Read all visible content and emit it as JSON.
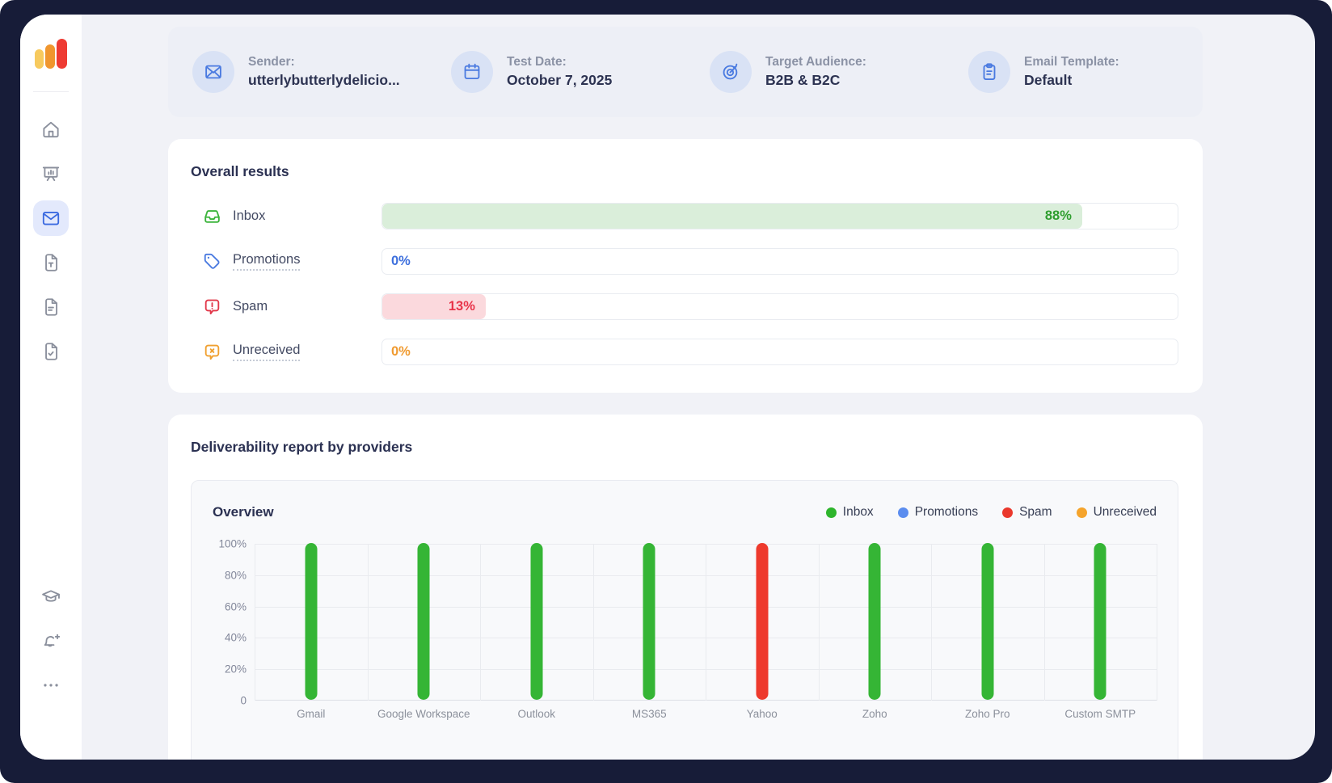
{
  "window": {
    "frame_color": "#171c38",
    "app_bg": "#f1f2f7"
  },
  "sidebar": {
    "logo_colors": [
      "#f7ca5e",
      "#f0962e",
      "#ee3b33"
    ],
    "items": [
      {
        "icon": "home",
        "name": "home",
        "active": false
      },
      {
        "icon": "presentation",
        "name": "reports",
        "active": false
      },
      {
        "icon": "mail",
        "name": "email-tests",
        "active": true
      },
      {
        "icon": "file-t",
        "name": "templates",
        "active": false
      },
      {
        "icon": "doc-lines",
        "name": "documents",
        "active": false
      },
      {
        "icon": "doc-check",
        "name": "checklists",
        "active": false
      }
    ],
    "bottom_items": [
      {
        "icon": "grad-cap",
        "name": "education"
      },
      {
        "icon": "bell-plus",
        "name": "notifications"
      },
      {
        "icon": "dots",
        "name": "more-options"
      }
    ]
  },
  "header": {
    "items": [
      {
        "icon": "envelope",
        "label": "Sender:",
        "value": "utterlybutterlydelicio..."
      },
      {
        "icon": "calendar",
        "label": "Test Date:",
        "value": "October 7, 2025"
      },
      {
        "icon": "target",
        "label": "Target Audience:",
        "value": "B2B & B2C"
      },
      {
        "icon": "clipboard",
        "label": "Email Template:",
        "value": "Default"
      }
    ]
  },
  "overall": {
    "title": "Overall results",
    "rows": [
      {
        "icon": "inbox",
        "label": "Inbox",
        "value": 88,
        "display": "88%",
        "icon_color": "#3cb43c",
        "fill_bg": "#daeeda",
        "text_color": "#2f9e2f",
        "underline": false
      },
      {
        "icon": "tag",
        "label": "Promotions",
        "value": 0,
        "display": "0%",
        "icon_color": "#4a7ae0",
        "fill_bg": "",
        "text_color": "#3d6fdd",
        "underline": true
      },
      {
        "icon": "bubble-exclaim",
        "label": "Spam",
        "value": 13,
        "display": "13%",
        "icon_color": "#e2384a",
        "fill_bg": "#fbd9dd",
        "text_color": "#e8344a",
        "underline": false
      },
      {
        "icon": "bubble-x",
        "label": "Unreceived",
        "value": 0,
        "display": "0%",
        "icon_color": "#f0a030",
        "fill_bg": "",
        "text_color": "#f09a2f",
        "underline": true
      }
    ]
  },
  "providers": {
    "title": "Deliverability report by providers",
    "chart_title": "Overview",
    "legend": [
      {
        "label": "Inbox",
        "color": "#2eb52c"
      },
      {
        "label": "Promotions",
        "color": "#5b8def"
      },
      {
        "label": "Spam",
        "color": "#ea382c"
      },
      {
        "label": "Unreceived",
        "color": "#f5a42c"
      }
    ],
    "chart_data": {
      "type": "bar",
      "title": "Overview",
      "categories": [
        "Gmail",
        "Google Workspace",
        "Outlook",
        "MS365",
        "Yahoo",
        "Zoho",
        "Zoho Pro",
        "Custom SMTP"
      ],
      "series": [
        {
          "name": "Inbox",
          "color": "#35b535",
          "values": [
            100,
            100,
            100,
            100,
            0,
            100,
            100,
            100
          ]
        },
        {
          "name": "Promotions",
          "color": "#5b8def",
          "values": [
            0,
            0,
            0,
            0,
            0,
            0,
            0,
            0
          ]
        },
        {
          "name": "Spam",
          "color": "#ee3a2d",
          "values": [
            0,
            0,
            0,
            0,
            100,
            0,
            0,
            0
          ]
        },
        {
          "name": "Unreceived",
          "color": "#f5a42c",
          "values": [
            0,
            0,
            0,
            0,
            0,
            0,
            0,
            0
          ]
        }
      ],
      "y_ticks": [
        "100%",
        "80%",
        "60%",
        "40%",
        "20%",
        "0"
      ],
      "ylim": [
        0,
        100
      ],
      "grid": true,
      "legend_position": "top-right"
    }
  }
}
